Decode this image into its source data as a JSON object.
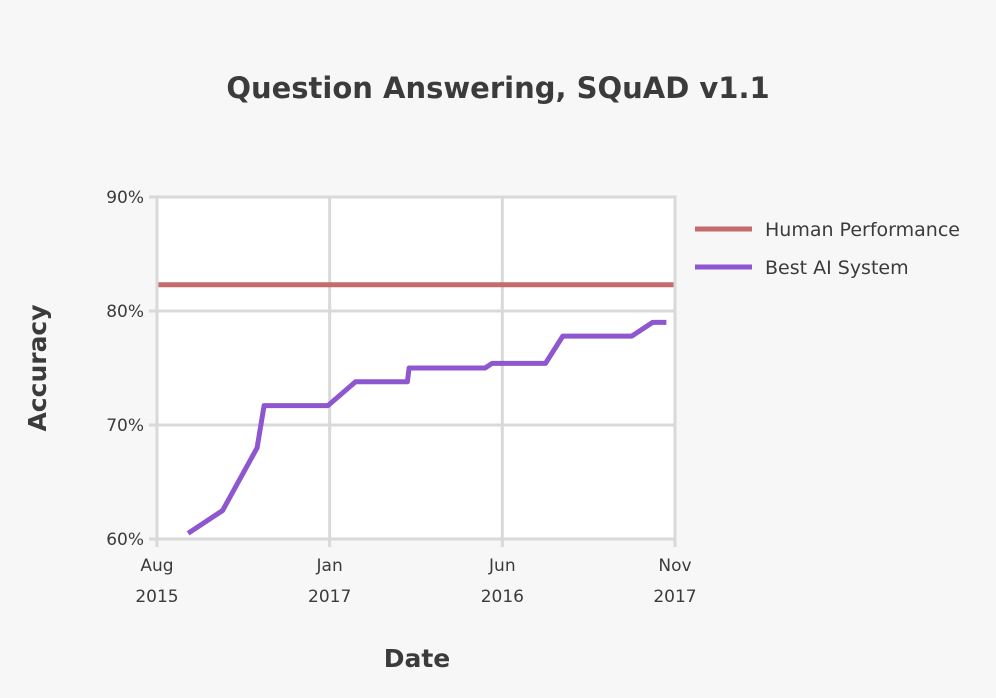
{
  "chart_data": {
    "type": "line",
    "title": "Question Answering, SQuAD v1.1",
    "xlabel": "Date",
    "ylabel": "Accuracy",
    "ylim": [
      60,
      90
    ],
    "yticks": [
      {
        "value": 60,
        "label": "60%"
      },
      {
        "value": 70,
        "label": "70%"
      },
      {
        "value": 80,
        "label": "80%"
      },
      {
        "value": 90,
        "label": "90%"
      }
    ],
    "xlim": [
      0,
      3
    ],
    "xticks": [
      {
        "value": 0,
        "month": "Aug",
        "year": "2015"
      },
      {
        "value": 1,
        "month": "Jan",
        "year": "2017"
      },
      {
        "value": 2,
        "month": "Jun",
        "year": "2016"
      },
      {
        "value": 3,
        "month": "Nov",
        "year": "2017"
      }
    ],
    "grid": true,
    "legend": "top-right",
    "series": [
      {
        "name": "Human Performance",
        "color": "#c46b6e",
        "x": [
          0,
          3
        ],
        "y": [
          82.3,
          82.3
        ]
      },
      {
        "name": "Best AI System",
        "color": "#8e57cf",
        "x": [
          0.18,
          0.38,
          0.58,
          0.62,
          0.99,
          1.15,
          1.45,
          1.46,
          1.9,
          1.94,
          2.25,
          2.35,
          2.75,
          2.87,
          2.95
        ],
        "y": [
          60.5,
          62.5,
          68.0,
          71.7,
          71.7,
          73.8,
          73.8,
          75.0,
          75.0,
          75.4,
          75.4,
          77.8,
          77.8,
          79.0,
          79.0
        ]
      }
    ]
  }
}
